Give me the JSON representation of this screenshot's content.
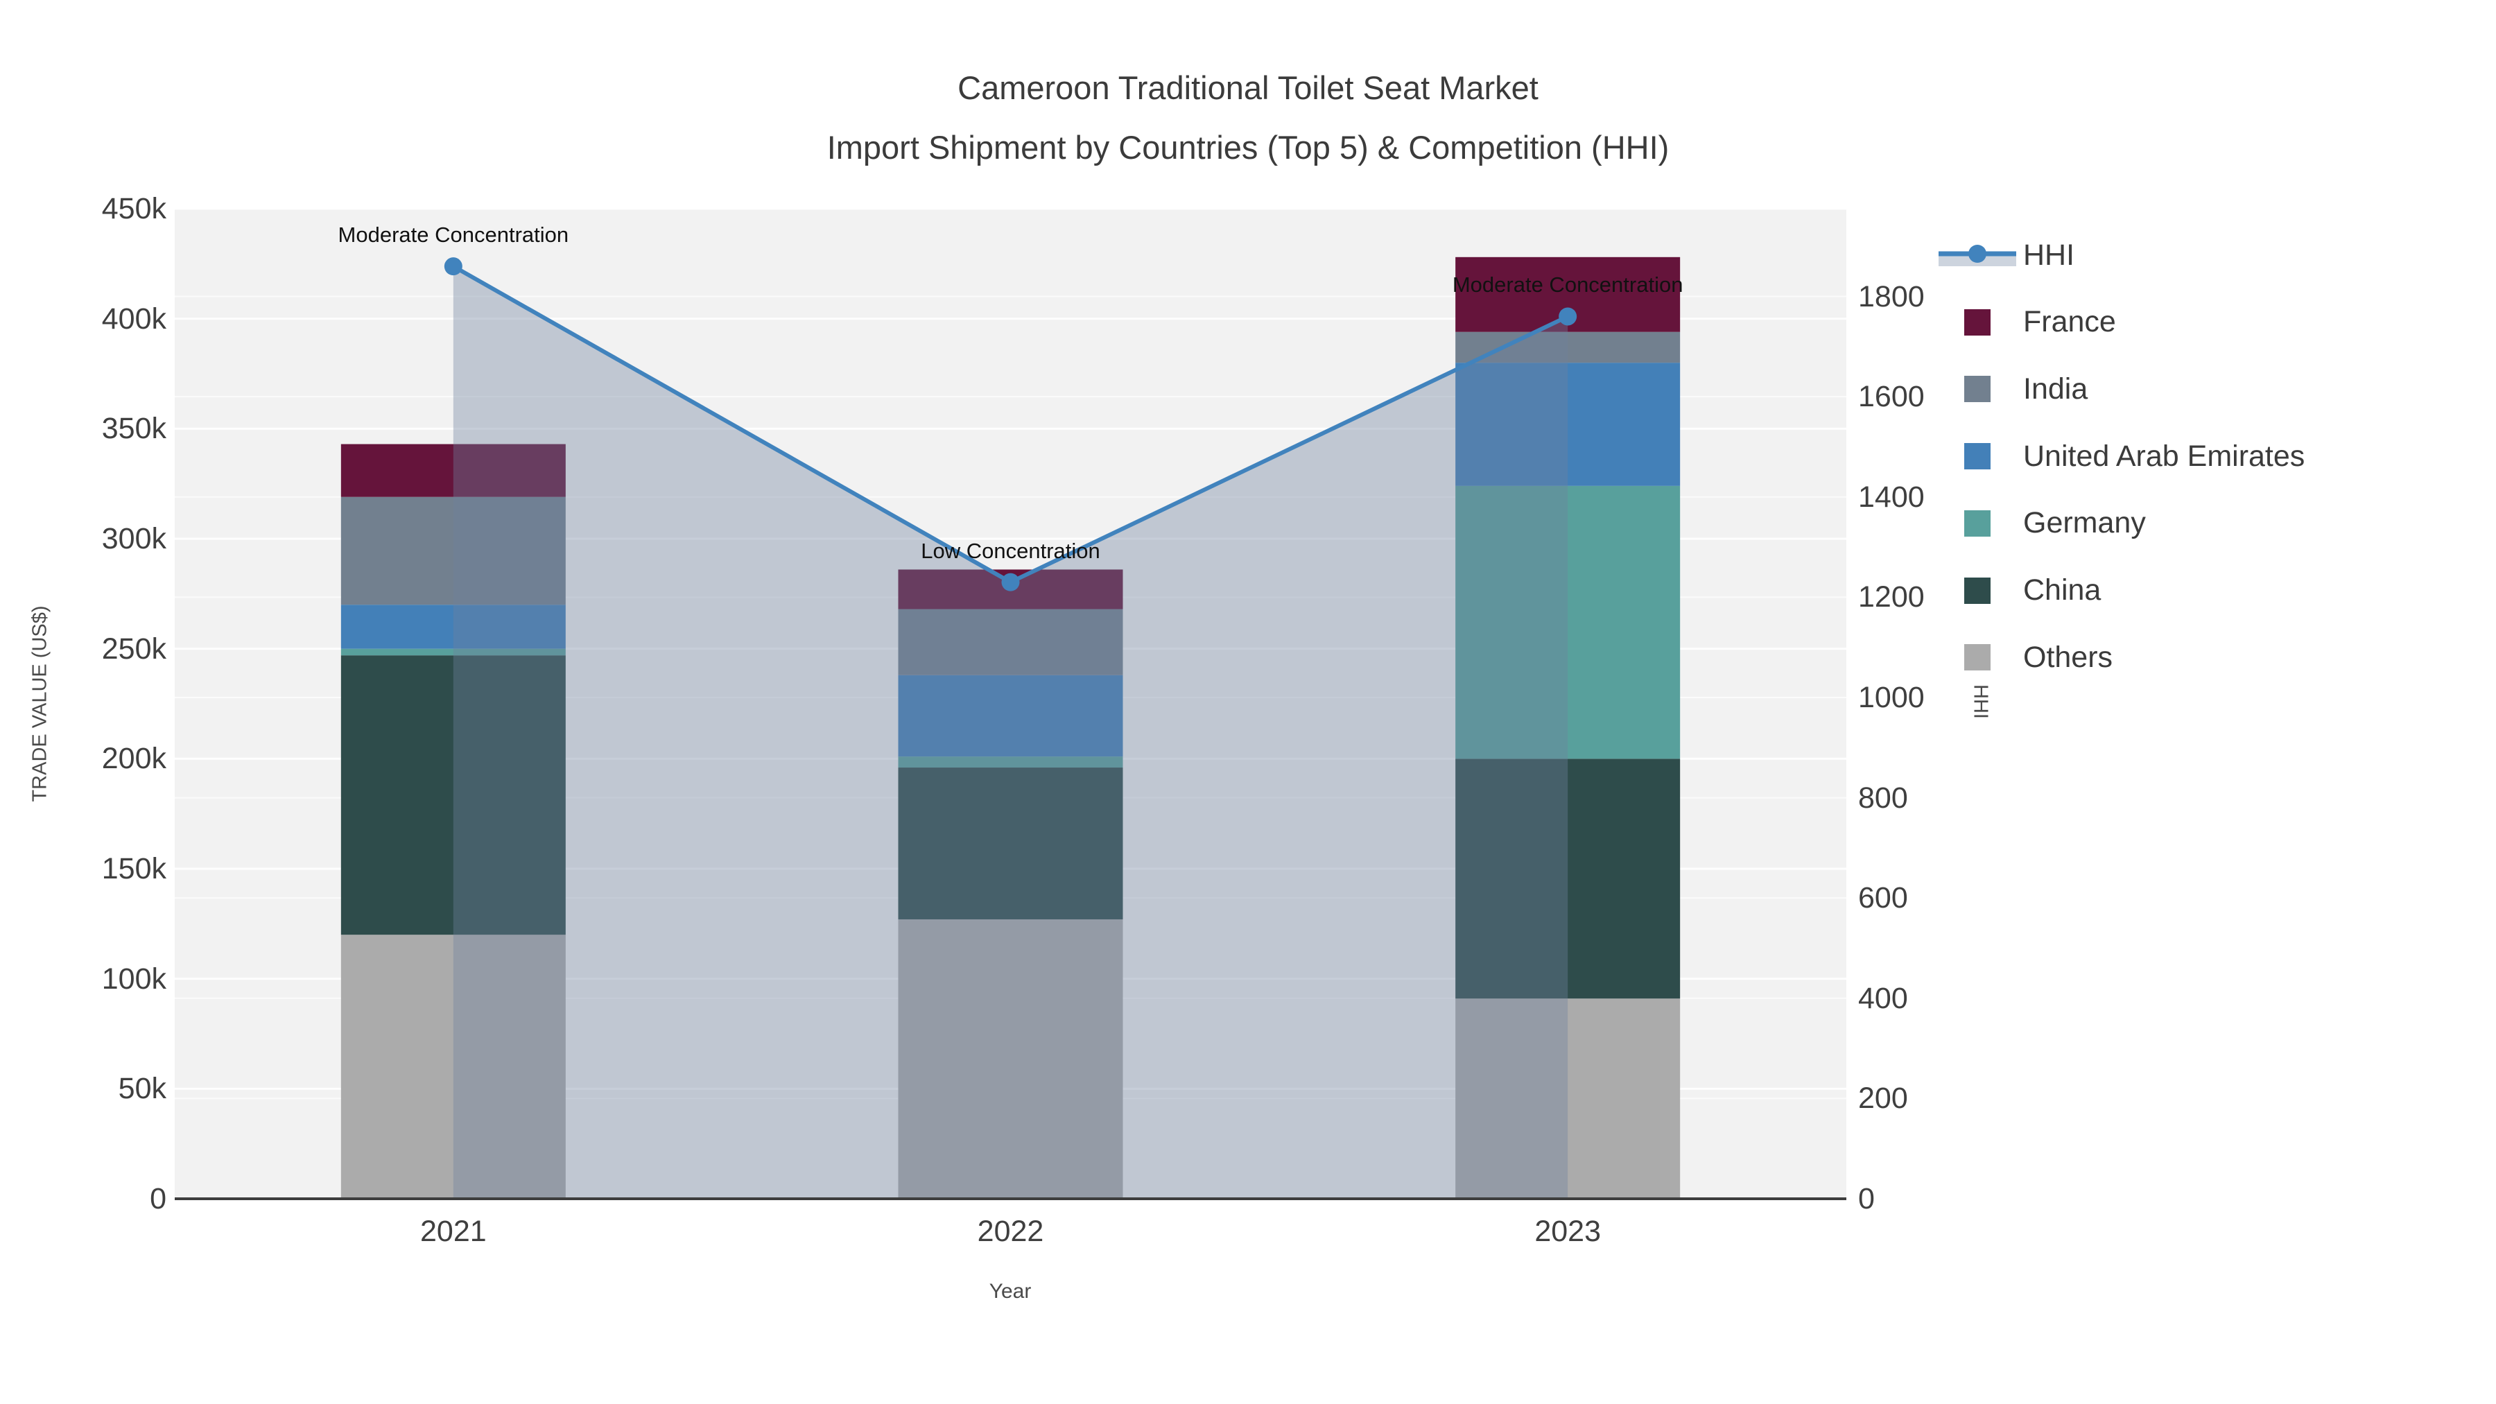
{
  "title": {
    "line1": "Cameroon Traditional Toilet Seat Market",
    "line2": "Import Shipment by Countries (Top 5) & Competition (HHI)"
  },
  "axes": {
    "x": {
      "title": "Year",
      "ticks": [
        "2021",
        "2022",
        "2023"
      ]
    },
    "y_left": {
      "title": "TRADE VALUE (US$)",
      "tick_labels": [
        "0",
        "50k",
        "100k",
        "150k",
        "200k",
        "250k",
        "300k",
        "350k",
        "400k",
        "450k"
      ],
      "tick_values": [
        0,
        50000,
        100000,
        150000,
        200000,
        250000,
        300000,
        350000,
        400000,
        450000
      ],
      "max": 450000
    },
    "y_right": {
      "title": "HHI",
      "tick_labels": [
        "0",
        "200",
        "400",
        "600",
        "800",
        "1000",
        "1200",
        "1400",
        "1600",
        "1800"
      ],
      "tick_values": [
        0,
        200,
        400,
        600,
        800,
        1000,
        1200,
        1400,
        1600,
        1800
      ],
      "max": 1975
    }
  },
  "legend": {
    "items": [
      {
        "label": "HHI",
        "type": "line",
        "color": "#4183BD",
        "band_color": "#CDD4DE"
      },
      {
        "label": "France",
        "type": "swatch",
        "color": "#65143B"
      },
      {
        "label": "India",
        "type": "swatch",
        "color": "#72808F"
      },
      {
        "label": "United Arab Emirates",
        "type": "swatch",
        "color": "#4380B8"
      },
      {
        "label": "Germany",
        "type": "swatch",
        "color": "#58A09C"
      },
      {
        "label": "China",
        "type": "swatch",
        "color": "#2E4C4B"
      },
      {
        "label": "Others",
        "type": "swatch",
        "color": "#ABABAB"
      }
    ]
  },
  "chart_data": {
    "type": "bar",
    "stacked": true,
    "grid": true,
    "legend_position": "right",
    "categories": [
      "2021",
      "2022",
      "2023"
    ],
    "bar_series": [
      {
        "name": "Others",
        "color": "#ABABAB",
        "values": [
          120000,
          127000,
          91000
        ]
      },
      {
        "name": "China",
        "color": "#2E4C4B",
        "values": [
          127000,
          69000,
          109000
        ]
      },
      {
        "name": "Germany",
        "color": "#58A09C",
        "values": [
          3000,
          5000,
          124000
        ]
      },
      {
        "name": "United Arab Emirates",
        "color": "#4380B8",
        "values": [
          20000,
          37000,
          56000
        ]
      },
      {
        "name": "India",
        "color": "#72808F",
        "values": [
          49000,
          30000,
          14000
        ]
      },
      {
        "name": "France",
        "color": "#65143B",
        "values": [
          24000,
          18000,
          34000
        ]
      }
    ],
    "bar_totals": [
      343000,
      286000,
      428000
    ],
    "line_series": {
      "name": "HHI",
      "axis": "right",
      "color": "#4183BD",
      "fill_color": "rgba(110,129,157,0.38)",
      "values": [
        1860,
        1230,
        1760
      ]
    },
    "annotations": [
      {
        "category": "2021",
        "text": "Moderate Concentration"
      },
      {
        "category": "2022",
        "text": "Low Concentration"
      },
      {
        "category": "2023",
        "text": "Moderate Concentration"
      }
    ],
    "xlabel": "Year",
    "ylabel_left": "TRADE VALUE (US$)",
    "ylabel_right": "HHI",
    "ylim_left": [
      0,
      450000
    ],
    "ylim_right": [
      0,
      1975
    ],
    "plot_bg": "#F2F2F2",
    "grid_color": "#FFFFFF",
    "axis_line_color": "#3D3D3D"
  }
}
